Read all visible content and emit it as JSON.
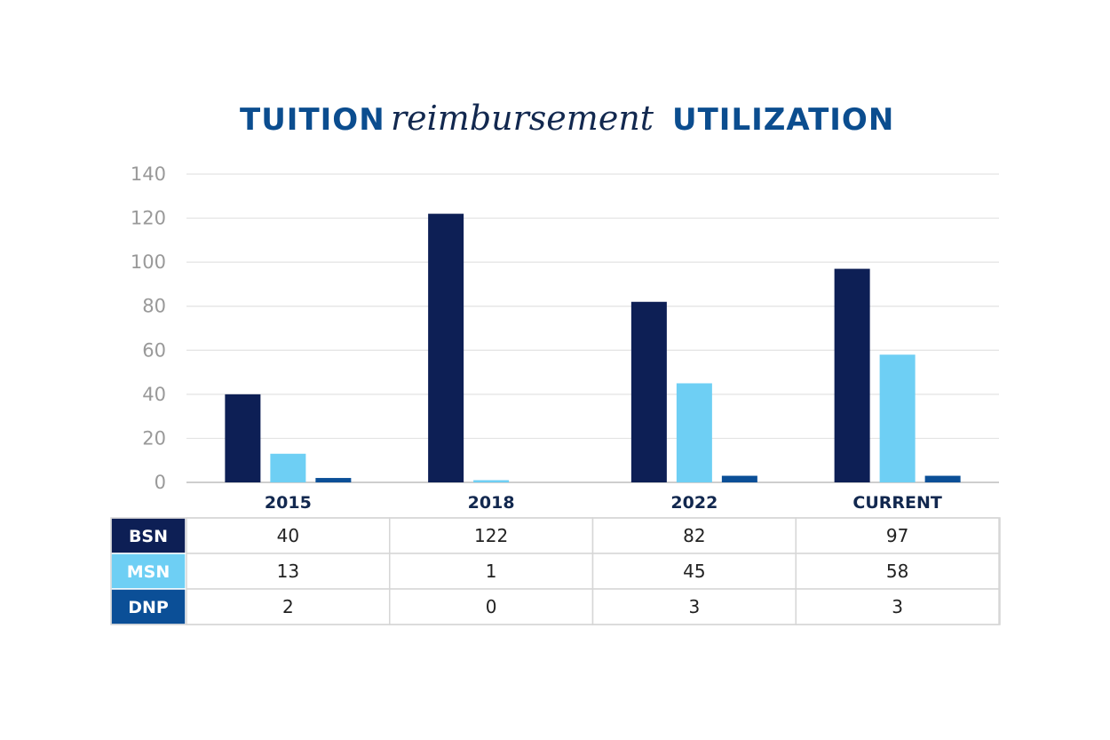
{
  "chart_data": {
    "type": "bar",
    "title_parts": [
      "TUITION",
      "reimbursement",
      "UTILIZATION"
    ],
    "categories": [
      "2015",
      "2018",
      "2022",
      "CURRENT"
    ],
    "series": [
      {
        "name": "BSN",
        "values": [
          40,
          122,
          82,
          97
        ],
        "color": "#0d1f55"
      },
      {
        "name": "MSN",
        "values": [
          13,
          1,
          45,
          58
        ],
        "color": "#6ecff4"
      },
      {
        "name": "DNP",
        "values": [
          2,
          0,
          3,
          3
        ],
        "color": "#0b4f97"
      }
    ],
    "ylim": [
      0,
      140
    ],
    "yticks": [
      "0",
      "20",
      "40",
      "60",
      "80",
      "100",
      "120",
      "140"
    ],
    "grid": true,
    "data_table": true
  }
}
